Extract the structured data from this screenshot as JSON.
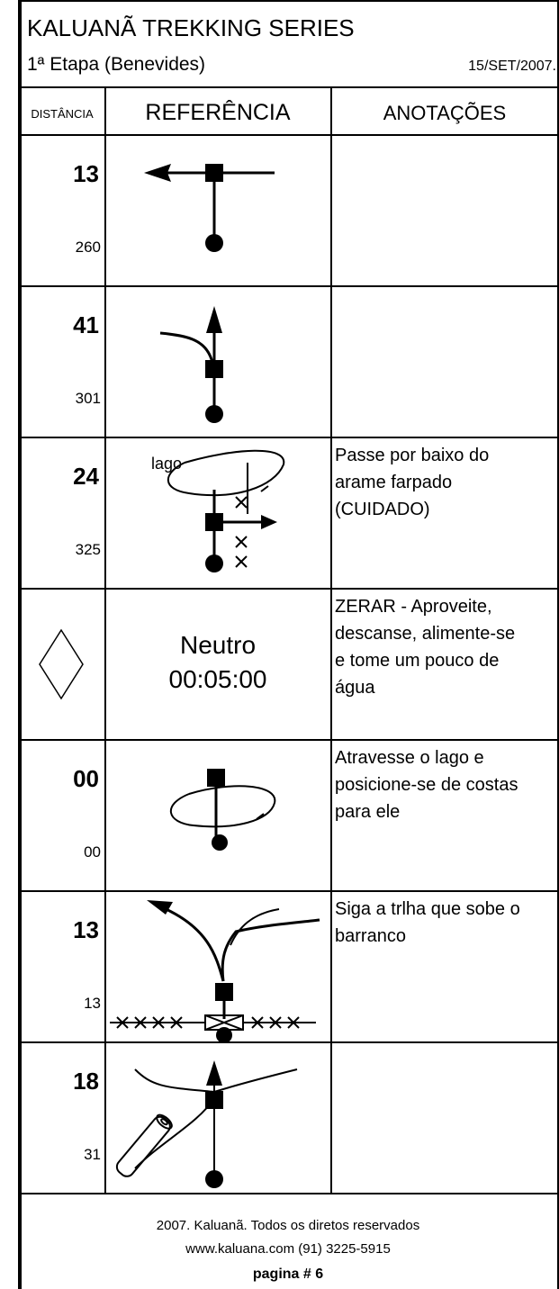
{
  "header": {
    "title": "KALUANÃ TREKKING SERIES",
    "stage": "1ª Etapa (Benevides)",
    "date": "15/SET/2007."
  },
  "columns": [
    "DISTÂNCIA",
    "REFERÊNCIA",
    "ANOTAÇÕES"
  ],
  "rows": [
    {
      "distance": "13",
      "total": "260",
      "notes": []
    },
    {
      "distance": "41",
      "total": "301",
      "notes": []
    },
    {
      "distance": "24",
      "total": "325",
      "label": "lago",
      "notes": [
        "Passe por baixo do",
        "arame farpado",
        "(CUIDADO)"
      ]
    },
    {
      "reference": [
        "Neutro",
        "00:05:00"
      ],
      "notes": [
        "ZERAR - Aproveite,",
        "descanse, alimente-se",
        "e tome um pouco de",
        "água"
      ]
    },
    {
      "distance": "00",
      "total": "00",
      "notes": [
        "Atravesse o lago e",
        "posicione-se de costas",
        "para ele"
      ]
    },
    {
      "distance": "13",
      "total": "13",
      "notes": [
        "Siga a trlha que sobe o",
        "barranco"
      ]
    },
    {
      "distance": "18",
      "total": "31",
      "notes": []
    }
  ],
  "footer": {
    "copyright": "2007. Kaluanã. Todos os diretos reservados",
    "contact": "www.kaluana.com   (91) 3225-5915",
    "page": "pagina # 6"
  }
}
